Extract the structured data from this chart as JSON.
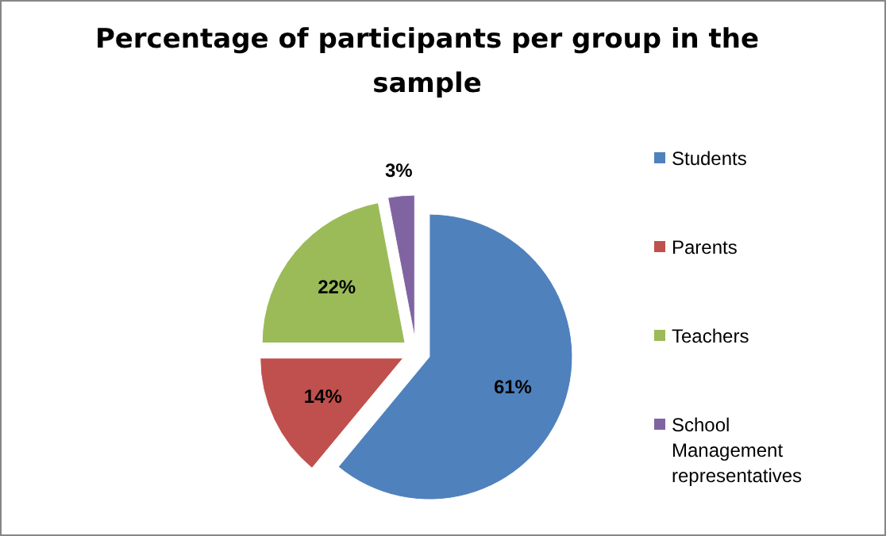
{
  "chart_data": {
    "type": "pie",
    "title": "Percentage of participants per group in the sample",
    "categories": [
      "Students",
      "Parents",
      "Teachers",
      "School Management representatives"
    ],
    "values": [
      61,
      14,
      22,
      3
    ],
    "colors": [
      "#4f81bd",
      "#c0504d",
      "#9bbb59",
      "#8064a2"
    ],
    "value_labels": [
      "61%",
      "14%",
      "22%",
      "3%"
    ],
    "legend": "right"
  }
}
